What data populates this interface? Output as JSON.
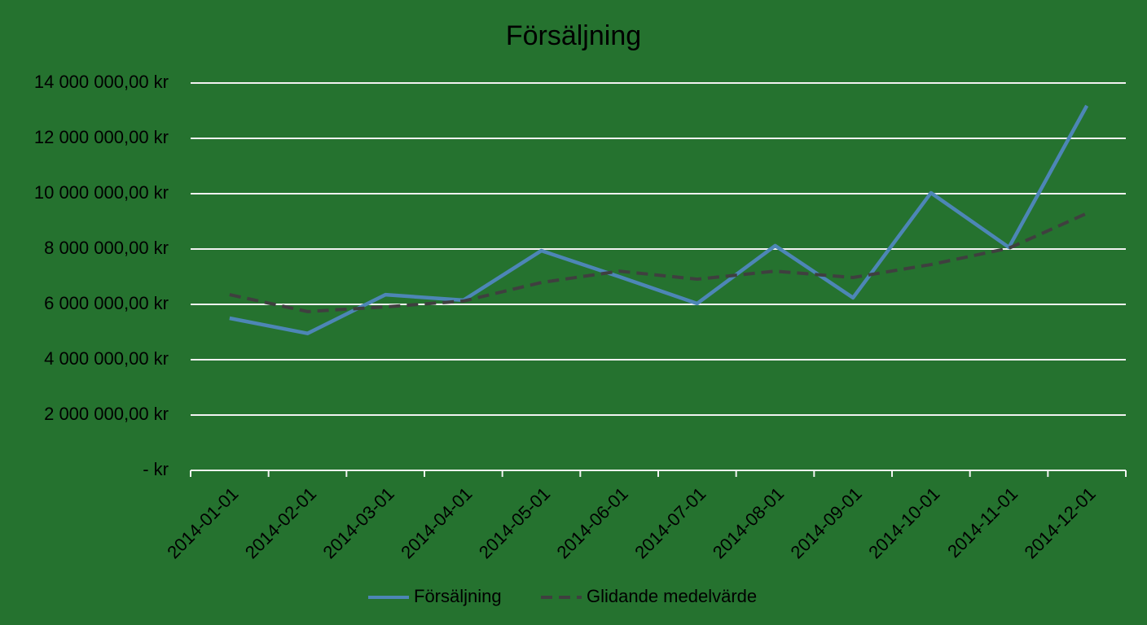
{
  "chart_data": {
    "type": "line",
    "title": "Försäljning",
    "categories": [
      "2014-01-01",
      "2014-02-01",
      "2014-03-01",
      "2014-04-01",
      "2014-05-01",
      "2014-06-01",
      "2014-07-01",
      "2014-08-01",
      "2014-09-01",
      "2014-10-01",
      "2014-11-01",
      "2014-12-01"
    ],
    "series": [
      {
        "name": "Försäljning",
        "color": "#4d86b6",
        "style": "solid",
        "values": [
          5500000,
          4950000,
          6350000,
          6150000,
          7940000,
          7000000,
          6030000,
          8120000,
          6240000,
          10030000,
          8060000,
          13180000
        ]
      },
      {
        "name": "Glidande medelvärde",
        "color": "#3f3f3f",
        "style": "dashed",
        "values": [
          6350000,
          5740000,
          5910000,
          6120000,
          6790000,
          7200000,
          6910000,
          7200000,
          6970000,
          7440000,
          8030000,
          9290000
        ]
      }
    ],
    "ylim": [
      0,
      14000000
    ],
    "yticks": [
      {
        "value": 0,
        "label": "-   kr"
      },
      {
        "value": 2000000,
        "label": "2 000 000,00 kr"
      },
      {
        "value": 4000000,
        "label": "4 000 000,00 kr"
      },
      {
        "value": 6000000,
        "label": "6 000 000,00 kr"
      },
      {
        "value": 8000000,
        "label": "8 000 000,00 kr"
      },
      {
        "value": 10000000,
        "label": "10 000 000,00 kr"
      },
      {
        "value": 12000000,
        "label": "12 000 000,00 kr"
      },
      {
        "value": 14000000,
        "label": "14 000 000,00 kr"
      }
    ],
    "grid": true,
    "legend": "bottom"
  }
}
